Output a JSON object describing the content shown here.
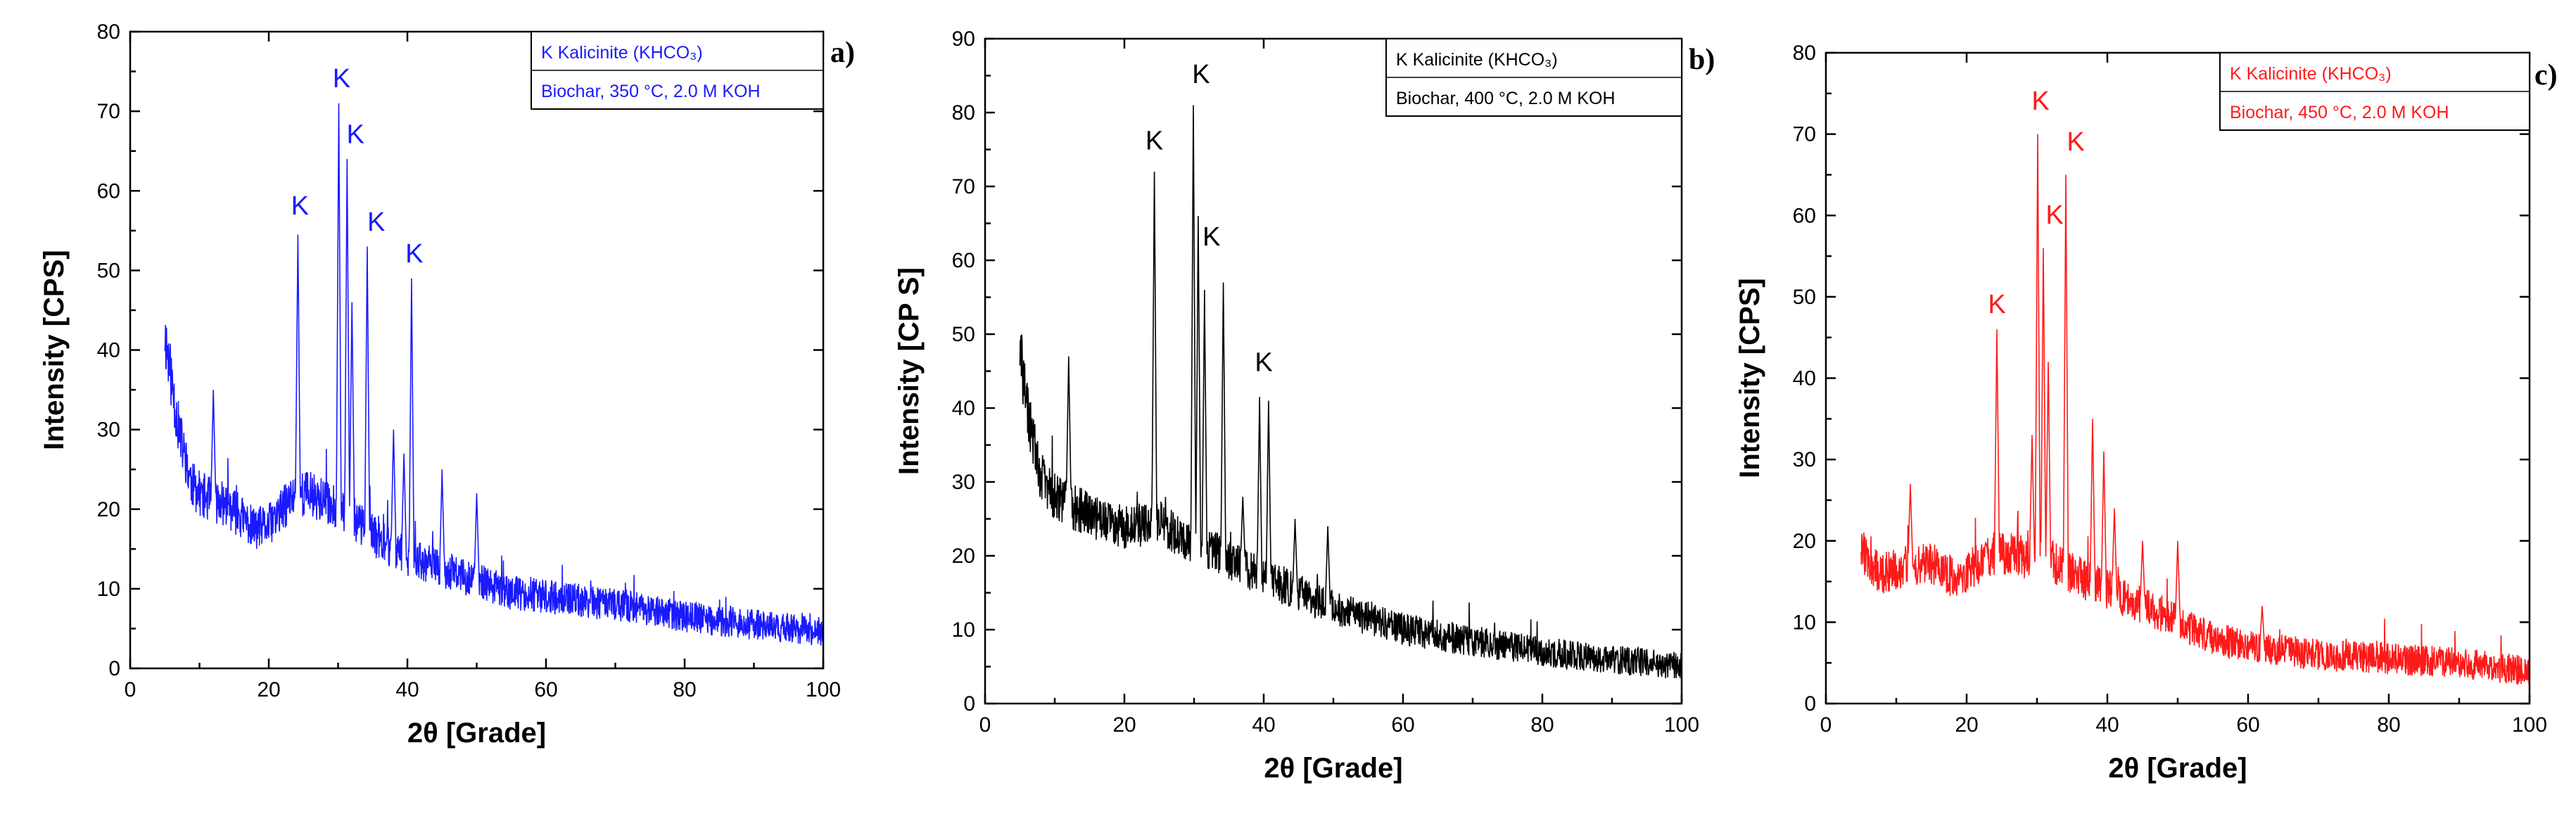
{
  "chart_data": [
    {
      "type": "line",
      "panel": "a)",
      "color": "#1a1aff",
      "xlabel": "2θ [Grade]",
      "ylabel": "Intensity [CPS]",
      "xlim": [
        0,
        100
      ],
      "ylim": [
        0,
        80
      ],
      "xticks": [
        "0",
        "20",
        "40",
        "60",
        "80",
        "100"
      ],
      "yticks": [
        "0",
        "10",
        "20",
        "30",
        "40",
        "50",
        "60",
        "70",
        "80"
      ],
      "legend": [
        "K Kalicinite (KHCO₃)",
        "Biochar, 350 °C, 2.0 M KOH"
      ],
      "legend_position": "top-right",
      "grid": false,
      "baseline": [
        [
          5,
          42
        ],
        [
          6,
          36
        ],
        [
          7,
          30
        ],
        [
          8,
          26
        ],
        [
          9,
          23
        ],
        [
          10,
          22
        ],
        [
          12,
          21
        ],
        [
          14,
          20.5
        ],
        [
          16,
          19
        ],
        [
          18,
          17.5
        ],
        [
          20,
          18
        ],
        [
          22,
          20
        ],
        [
          24,
          22
        ],
        [
          26,
          22
        ],
        [
          28,
          21
        ],
        [
          30,
          20
        ],
        [
          32,
          19
        ],
        [
          34,
          17.5
        ],
        [
          36,
          16
        ],
        [
          40,
          14
        ],
        [
          45,
          12.5
        ],
        [
          50,
          11
        ],
        [
          55,
          9.5
        ],
        [
          60,
          9
        ],
        [
          70,
          8
        ],
        [
          80,
          6.5
        ],
        [
          90,
          5.5
        ],
        [
          100,
          4.5
        ]
      ],
      "peaks": [
        [
          12,
          35
        ],
        [
          24.2,
          54.5
        ],
        [
          30.1,
          71
        ],
        [
          31.3,
          64
        ],
        [
          32,
          46
        ],
        [
          34.2,
          53
        ],
        [
          38,
          30
        ],
        [
          39.5,
          27
        ],
        [
          40.6,
          49
        ],
        [
          45,
          25
        ],
        [
          50,
          22
        ]
      ],
      "peak_labels": [
        {
          "text": "K",
          "x": 24.5,
          "y": 57
        },
        {
          "text": "K",
          "x": 30.5,
          "y": 73
        },
        {
          "text": "K",
          "x": 32.5,
          "y": 66
        },
        {
          "text": "K",
          "x": 35.5,
          "y": 55
        },
        {
          "text": "K",
          "x": 41,
          "y": 51
        }
      ]
    },
    {
      "type": "line",
      "panel": "b)",
      "color": "#000000",
      "xlabel": "2θ [Grade]",
      "ylabel": "Intensity [CP S]",
      "xlim": [
        0,
        100
      ],
      "ylim": [
        0,
        90
      ],
      "xticks": [
        "0",
        "20",
        "40",
        "60",
        "80",
        "100"
      ],
      "yticks": [
        "0",
        "10",
        "20",
        "30",
        "40",
        "50",
        "60",
        "70",
        "80",
        "90"
      ],
      "legend": [
        "K Kalicinite (KHCO₃)",
        "Biochar, 400 °C, 2.0 M KOH"
      ],
      "legend_position": "top-right",
      "grid": false,
      "baseline": [
        [
          5,
          48
        ],
        [
          6,
          40
        ],
        [
          7,
          35
        ],
        [
          8,
          31
        ],
        [
          10,
          28
        ],
        [
          12,
          27
        ],
        [
          15,
          25.5
        ],
        [
          18,
          24.5
        ],
        [
          20,
          24
        ],
        [
          22,
          24
        ],
        [
          24,
          25
        ],
        [
          26,
          24
        ],
        [
          28,
          22.5
        ],
        [
          30,
          22
        ],
        [
          32,
          21
        ],
        [
          34,
          20
        ],
        [
          36,
          19
        ],
        [
          40,
          17
        ],
        [
          45,
          15
        ],
        [
          50,
          13
        ],
        [
          55,
          11.5
        ],
        [
          60,
          10
        ],
        [
          70,
          8.5
        ],
        [
          80,
          7
        ],
        [
          90,
          6
        ],
        [
          100,
          5
        ]
      ],
      "peaks": [
        [
          12,
          47
        ],
        [
          24.3,
          72
        ],
        [
          29.9,
          81
        ],
        [
          30.6,
          66
        ],
        [
          31.5,
          56
        ],
        [
          34.2,
          57
        ],
        [
          37,
          28
        ],
        [
          39.4,
          41.5
        ],
        [
          40.7,
          41
        ],
        [
          44.5,
          25
        ],
        [
          49.2,
          24
        ]
      ],
      "peak_labels": [
        {
          "text": "K",
          "x": 24.3,
          "y": 75
        },
        {
          "text": "K",
          "x": 31,
          "y": 84
        },
        {
          "text": "K",
          "x": 32.5,
          "y": 62
        },
        {
          "text": "K",
          "x": 40,
          "y": 45
        }
      ]
    },
    {
      "type": "line",
      "panel": "c)",
      "color": "#ff1a1a",
      "xlabel": "2θ [Grade]",
      "ylabel": "Intensity [CPS]",
      "xlim": [
        0,
        100
      ],
      "ylim": [
        0,
        80
      ],
      "xticks": [
        "0",
        "20",
        "40",
        "60",
        "80",
        "100"
      ],
      "yticks": [
        "0",
        "10",
        "20",
        "30",
        "40",
        "50",
        "60",
        "70",
        "80"
      ],
      "legend": [
        "K Kalicinite (KHCO₃)",
        "Biochar, 450 °C, 2.0 M KOH"
      ],
      "legend_position": "top-right",
      "grid": false,
      "baseline": [
        [
          5,
          20
        ],
        [
          6,
          17
        ],
        [
          8,
          16
        ],
        [
          10,
          16.5
        ],
        [
          12,
          17
        ],
        [
          14,
          17.5
        ],
        [
          16,
          17
        ],
        [
          18,
          15.5
        ],
        [
          20,
          16
        ],
        [
          22,
          17.5
        ],
        [
          24,
          18.5
        ],
        [
          26,
          18.5
        ],
        [
          28,
          18
        ],
        [
          30,
          18
        ],
        [
          32,
          17.5
        ],
        [
          34,
          16.5
        ],
        [
          36,
          15.5
        ],
        [
          40,
          14
        ],
        [
          45,
          12
        ],
        [
          50,
          10
        ],
        [
          55,
          8
        ],
        [
          60,
          7
        ],
        [
          70,
          6
        ],
        [
          80,
          5.5
        ],
        [
          90,
          5
        ],
        [
          100,
          4
        ]
      ],
      "peaks": [
        [
          12,
          27
        ],
        [
          24.3,
          46
        ],
        [
          29.3,
          33
        ],
        [
          30.1,
          70
        ],
        [
          30.9,
          56
        ],
        [
          31.6,
          42
        ],
        [
          34.1,
          65
        ],
        [
          37.9,
          35
        ],
        [
          39.5,
          31
        ],
        [
          41,
          24
        ],
        [
          45,
          20
        ],
        [
          50,
          20
        ],
        [
          62,
          12
        ]
      ],
      "peak_labels": [
        {
          "text": "K",
          "x": 24.3,
          "y": 48
        },
        {
          "text": "K",
          "x": 30.5,
          "y": 73
        },
        {
          "text": "K",
          "x": 32.5,
          "y": 59
        },
        {
          "text": "K",
          "x": 35.5,
          "y": 68
        }
      ]
    }
  ]
}
